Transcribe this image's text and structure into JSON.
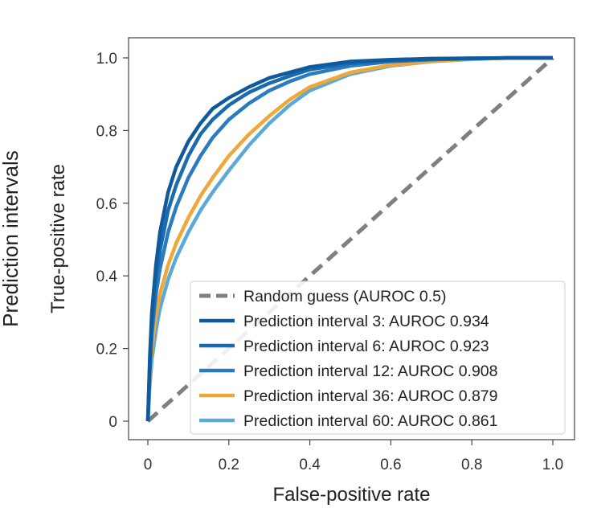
{
  "side_label": "Prediction intervals",
  "chart_data": {
    "type": "line",
    "title": "",
    "xlabel": "False-positive rate",
    "ylabel": "True-positive rate",
    "xlim": [
      0,
      1.0
    ],
    "ylim": [
      0,
      1.0
    ],
    "xticks": [
      "0",
      "0.2",
      "0.4",
      "0.6",
      "0.8",
      "1.0"
    ],
    "yticks": [
      "0",
      "0.2",
      "0.4",
      "0.6",
      "0.8",
      "1.0"
    ],
    "grid": false,
    "legend_position": "bottom-right",
    "series": [
      {
        "name": "Random guess (AUROC 0.5)",
        "color": "#7f7f7f",
        "style": "dashed",
        "x": [
          0,
          1.0
        ],
        "y": [
          0,
          1.0
        ]
      },
      {
        "name": "Prediction interval 3: AUROC 0.934",
        "color": "#0f5a9c",
        "style": "solid",
        "x": [
          0,
          0.005,
          0.01,
          0.02,
          0.03,
          0.05,
          0.07,
          0.1,
          0.13,
          0.16,
          0.2,
          0.25,
          0.3,
          0.35,
          0.4,
          0.5,
          0.6,
          0.7,
          0.8,
          0.9,
          1.0
        ],
        "y": [
          0,
          0.18,
          0.3,
          0.43,
          0.52,
          0.63,
          0.7,
          0.77,
          0.82,
          0.86,
          0.89,
          0.92,
          0.945,
          0.96,
          0.975,
          0.99,
          0.995,
          0.998,
          0.999,
          1.0,
          1.0
        ]
      },
      {
        "name": "Prediction interval 6: AUROC 0.923",
        "color": "#1a6aad",
        "style": "solid",
        "x": [
          0,
          0.005,
          0.01,
          0.02,
          0.03,
          0.05,
          0.07,
          0.1,
          0.13,
          0.16,
          0.2,
          0.25,
          0.3,
          0.35,
          0.4,
          0.5,
          0.6,
          0.7,
          0.8,
          0.9,
          1.0
        ],
        "y": [
          0,
          0.16,
          0.27,
          0.39,
          0.47,
          0.58,
          0.65,
          0.73,
          0.79,
          0.83,
          0.87,
          0.905,
          0.93,
          0.95,
          0.968,
          0.985,
          0.993,
          0.997,
          0.999,
          1.0,
          1.0
        ]
      },
      {
        "name": "Prediction interval 12: AUROC 0.908",
        "color": "#2b7bc0",
        "style": "solid",
        "x": [
          0,
          0.005,
          0.01,
          0.02,
          0.03,
          0.05,
          0.07,
          0.1,
          0.13,
          0.16,
          0.2,
          0.25,
          0.3,
          0.35,
          0.4,
          0.5,
          0.6,
          0.7,
          0.8,
          0.9,
          1.0
        ],
        "y": [
          0,
          0.14,
          0.24,
          0.35,
          0.42,
          0.52,
          0.59,
          0.67,
          0.73,
          0.78,
          0.83,
          0.875,
          0.91,
          0.935,
          0.955,
          0.978,
          0.99,
          0.995,
          0.998,
          1.0,
          1.0
        ]
      },
      {
        "name": "Prediction interval 36: AUROC 0.879",
        "color": "#f0a73a",
        "style": "solid",
        "x": [
          0,
          0.005,
          0.01,
          0.02,
          0.03,
          0.05,
          0.07,
          0.1,
          0.13,
          0.16,
          0.2,
          0.25,
          0.3,
          0.35,
          0.4,
          0.5,
          0.6,
          0.7,
          0.8,
          0.9,
          1.0
        ],
        "y": [
          0,
          0.12,
          0.2,
          0.29,
          0.35,
          0.43,
          0.49,
          0.56,
          0.62,
          0.67,
          0.73,
          0.79,
          0.84,
          0.885,
          0.92,
          0.96,
          0.98,
          0.99,
          0.997,
          1.0,
          1.0
        ]
      },
      {
        "name": "Prediction interval 60: AUROC 0.861",
        "color": "#5aa9d6",
        "style": "solid",
        "x": [
          0,
          0.005,
          0.01,
          0.02,
          0.03,
          0.05,
          0.07,
          0.1,
          0.13,
          0.16,
          0.2,
          0.25,
          0.3,
          0.35,
          0.4,
          0.5,
          0.6,
          0.7,
          0.8,
          0.9,
          1.0
        ],
        "y": [
          0,
          0.1,
          0.17,
          0.25,
          0.31,
          0.39,
          0.45,
          0.52,
          0.58,
          0.63,
          0.69,
          0.76,
          0.82,
          0.87,
          0.91,
          0.955,
          0.978,
          0.99,
          0.996,
          1.0,
          1.0
        ]
      }
    ]
  }
}
